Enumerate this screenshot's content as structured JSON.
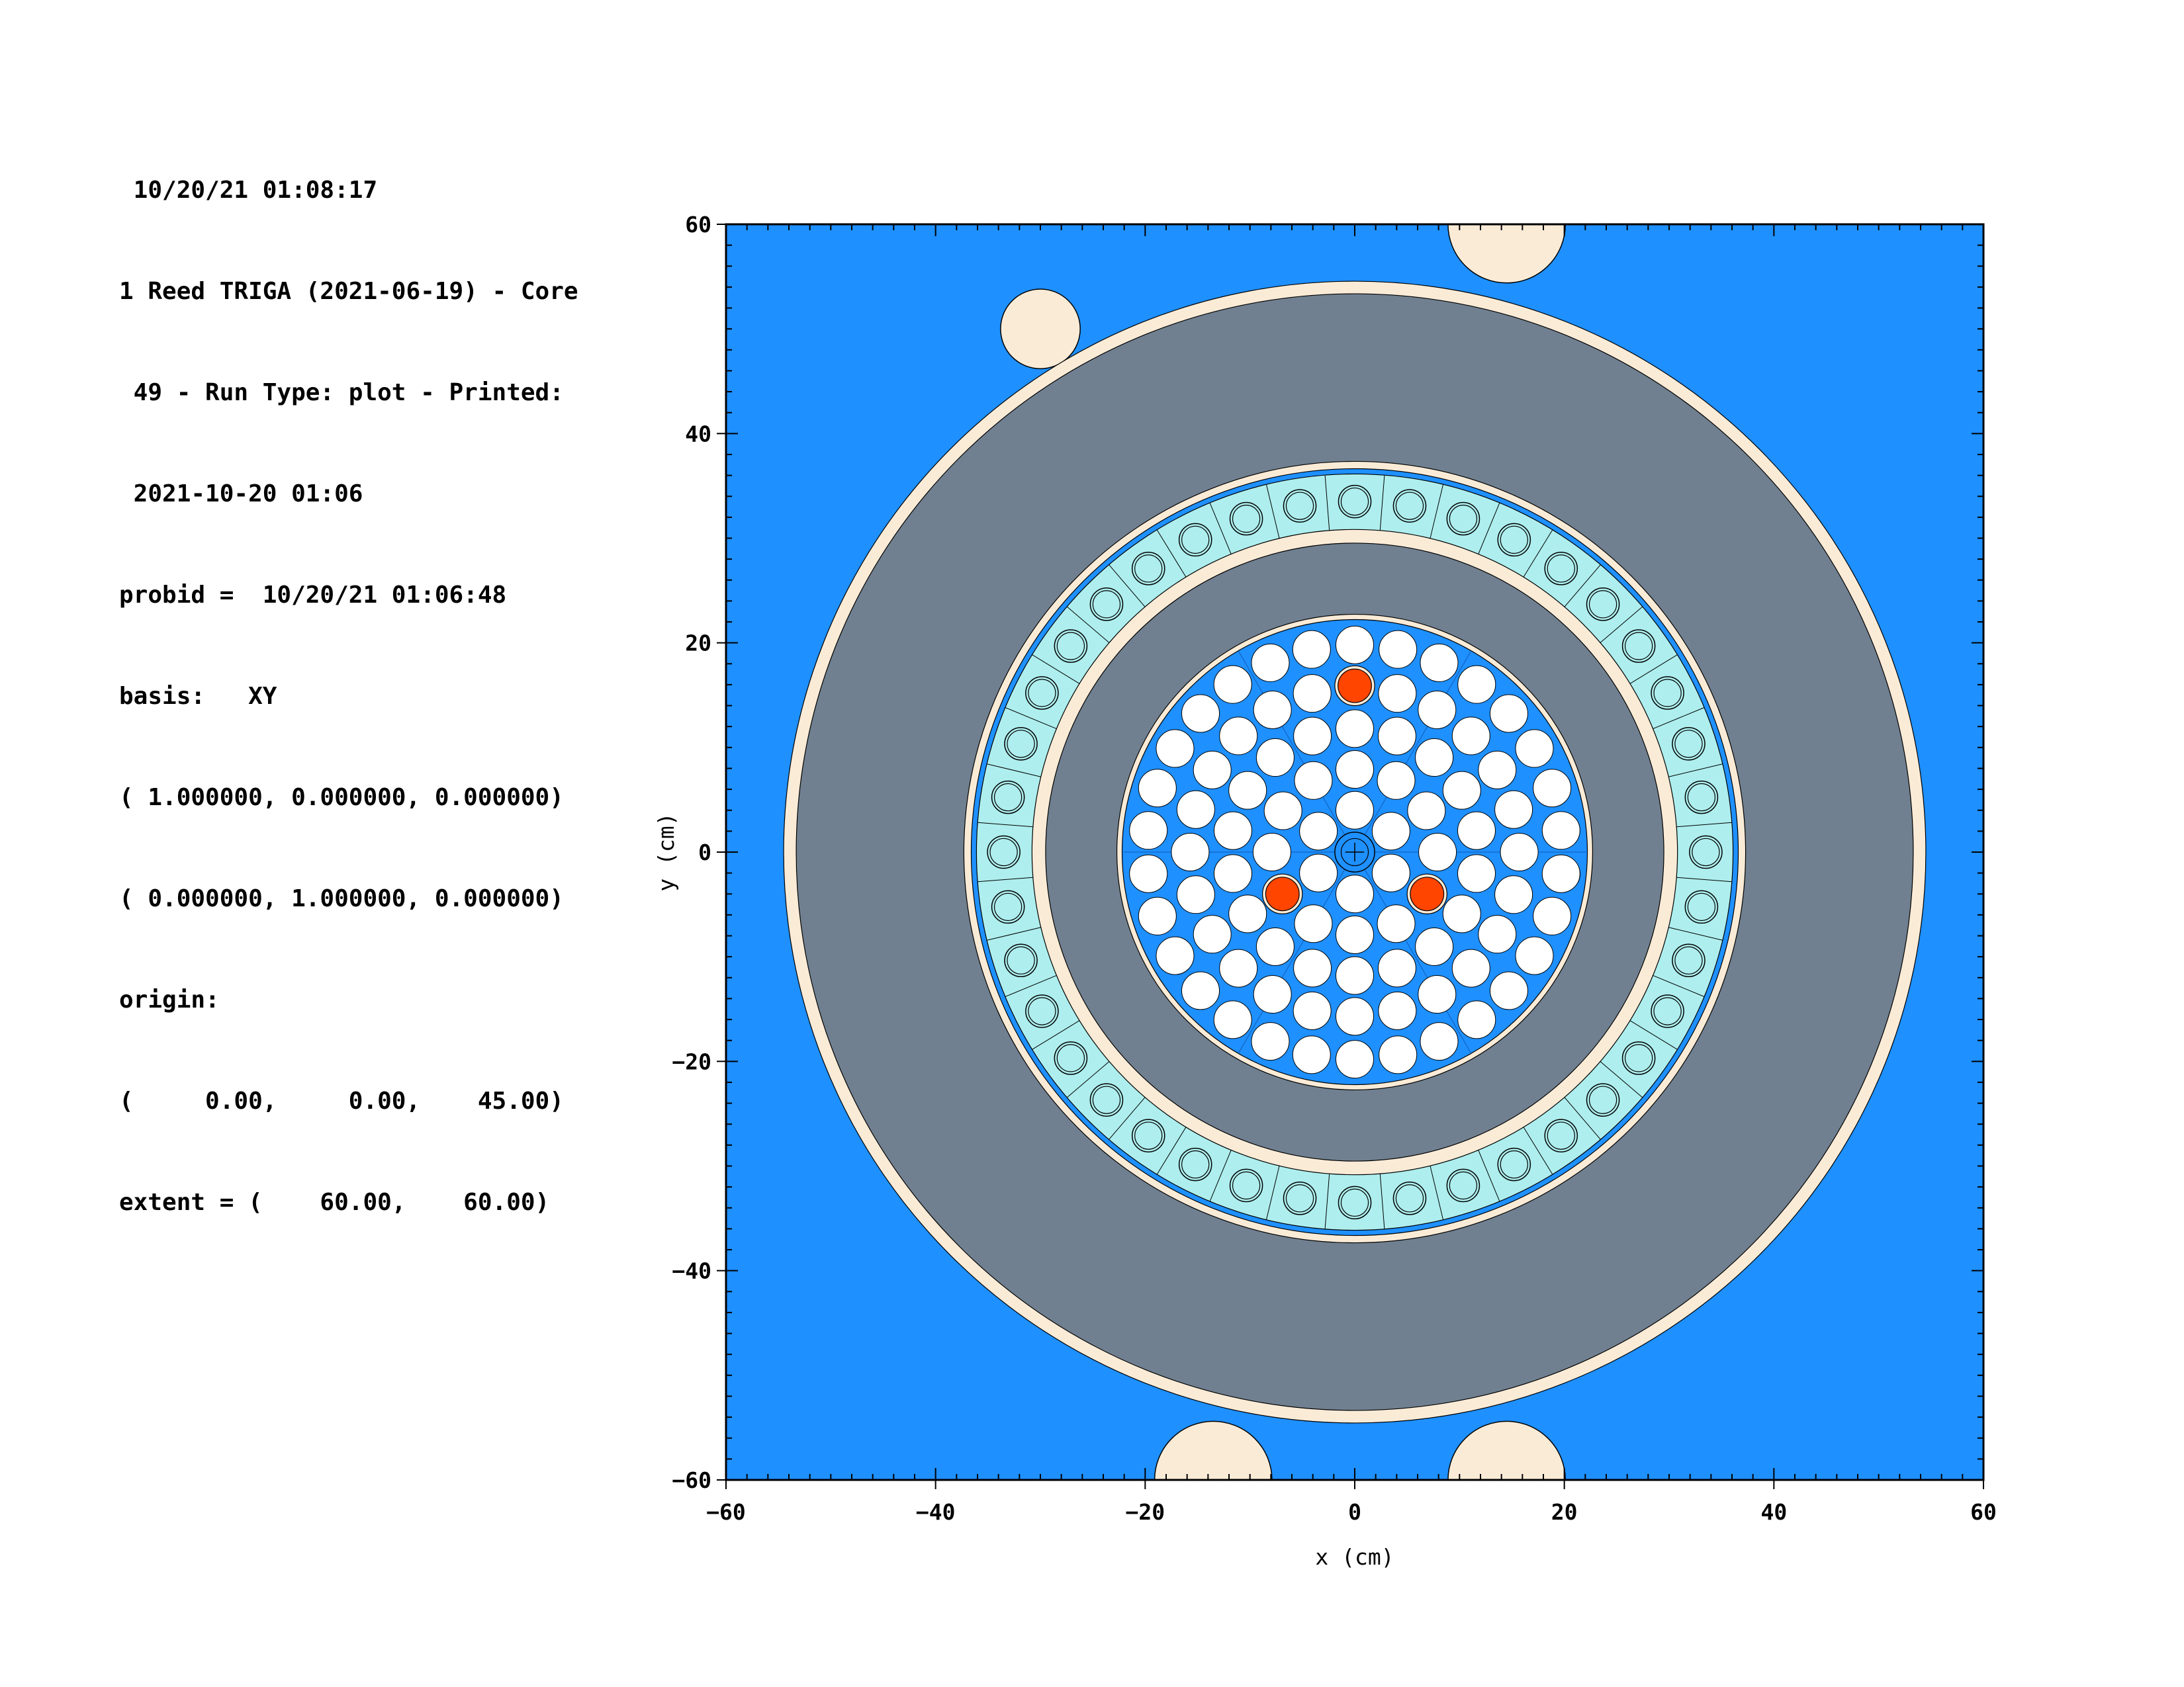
{
  "header": {
    "lines": [
      " 10/20/21 01:08:17",
      "1 Reed TRIGA (2021-06-19) - Core",
      " 49 - Run Type: plot - Printed:",
      " 2021-10-20 01:06",
      "probid =  10/20/21 01:06:48",
      "basis:   XY",
      "( 1.000000, 0.000000, 0.000000)",
      "( 0.000000, 1.000000, 0.000000)",
      "origin:",
      "(     0.00,     0.00,    45.00)",
      "extent = (    60.00,    60.00)"
    ]
  },
  "colors": {
    "water": "#1e90ff",
    "graphite": "#708090",
    "shell": "#faebd7",
    "fuel": "#ffffff",
    "lazy_susan": "#aeeeee",
    "control_rod": "#ff4500",
    "outline": "#000000"
  },
  "chart_data": {
    "type": "geometry-plot",
    "xlabel": "x (cm)",
    "ylabel": "y (cm)",
    "xlim": [
      -60,
      60
    ],
    "ylim": [
      -60,
      60
    ],
    "x_ticks": [
      "−60",
      "−40",
      "−20",
      "0",
      "20",
      "40",
      "60"
    ],
    "y_ticks": [
      "60",
      "40",
      "20",
      "0",
      "−20",
      "−40",
      "−60"
    ],
    "x_tick_values": [
      -60,
      -40,
      -20,
      0,
      20,
      40,
      60
    ],
    "y_tick_values": [
      60,
      40,
      20,
      0,
      -20,
      -40,
      -60
    ],
    "rings_cm": [
      {
        "name": "reflector-outer-shell",
        "r": 54.5,
        "color": "shell"
      },
      {
        "name": "reflector-graphite",
        "r": 53.3,
        "color": "graphite"
      },
      {
        "name": "rack-outer-shell",
        "r": 37.3,
        "color": "shell"
      },
      {
        "name": "rack-water-gap",
        "r": 36.6,
        "color": "water"
      },
      {
        "name": "rack-band",
        "r": 36.1,
        "color": "lazy_susan"
      },
      {
        "name": "rack-inner-shell",
        "r": 30.8,
        "color": "shell"
      },
      {
        "name": "inner-graphite",
        "r": 29.5,
        "color": "graphite"
      },
      {
        "name": "core-shell",
        "r": 22.7,
        "color": "shell"
      },
      {
        "name": "core-water",
        "r": 22.2,
        "color": "water"
      }
    ],
    "rack_positions": 40,
    "rack_radius_cm": 33.5,
    "occupied_rack_angle_deg": -6,
    "fuel_rings": [
      {
        "r": 0,
        "n": 1
      },
      {
        "r": 4.0,
        "n": 6
      },
      {
        "r": 7.9,
        "n": 12
      },
      {
        "r": 11.8,
        "n": 18
      },
      {
        "r": 15.7,
        "n": 24
      },
      {
        "r": 19.8,
        "n": 30
      }
    ],
    "fuel_pin_radius_cm": 1.8,
    "control_rods": [
      {
        "x": 0.0,
        "y": 15.9
      },
      {
        "x": -6.9,
        "y": -4.0
      },
      {
        "x": 6.9,
        "y": -4.0
      }
    ],
    "corner_tubes": [
      {
        "x": -30.0,
        "y": 50.0,
        "r": 3.8,
        "clip": "none"
      },
      {
        "x": 14.5,
        "y": 60.0,
        "r": 5.6,
        "clip": "top"
      },
      {
        "x": -13.5,
        "y": -60.0,
        "r": 5.6,
        "clip": "bottom"
      },
      {
        "x": 14.5,
        "y": -60.0,
        "r": 5.6,
        "clip": "bottom"
      }
    ]
  }
}
